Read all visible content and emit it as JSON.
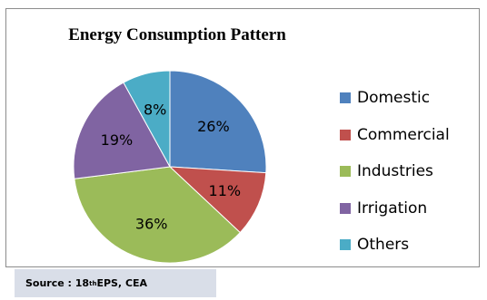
{
  "chart_data": {
    "type": "pie",
    "title": "Energy Consumption Pattern",
    "categories": [
      "Domestic",
      "Commercial",
      "Industries",
      "Irrigation",
      "Others"
    ],
    "values": [
      26,
      11,
      36,
      19,
      8
    ],
    "value_labels": [
      "26%",
      "11%",
      "36%",
      "19%",
      "8%"
    ],
    "colors": [
      "#4f81bd",
      "#c0504d",
      "#9bbb59",
      "#8064a2",
      "#4bacc6"
    ],
    "legend_position": "right",
    "start_angle": "top, clockwise"
  },
  "source": {
    "prefix": "Source : 18",
    "superscript": "th",
    "suffix": " EPS, CEA"
  }
}
